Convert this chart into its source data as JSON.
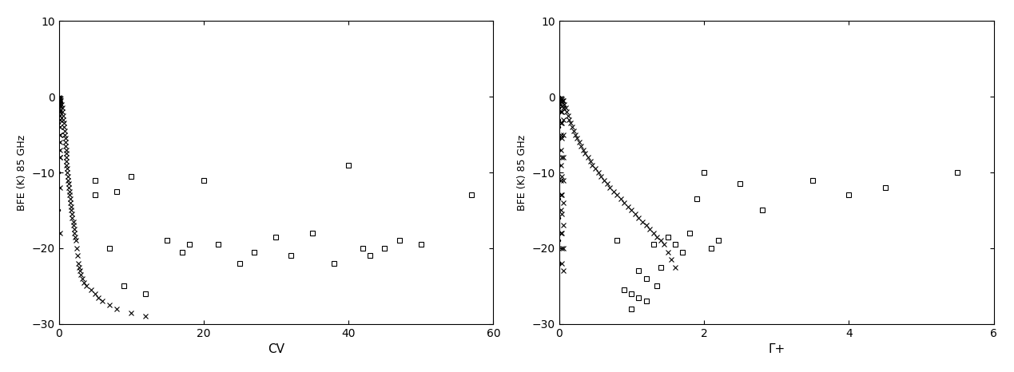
{
  "background_color": "#ffffff",
  "fig_width": 12.69,
  "fig_height": 4.66,
  "dpi": 100,
  "plot1": {
    "ylabel": "BFE (K) 85 GHz",
    "xlabel": "CV",
    "xlim": [
      0,
      60
    ],
    "ylim": [
      -30,
      10
    ],
    "xticks": [
      0,
      20,
      40,
      60
    ],
    "yticks": [
      -30,
      -20,
      -10,
      0,
      10
    ],
    "crosses_x": [
      0.3,
      0.4,
      0.5,
      0.5,
      0.6,
      0.6,
      0.7,
      0.7,
      0.8,
      0.8,
      0.9,
      0.9,
      0.9,
      1.0,
      1.0,
      1.0,
      1.1,
      1.1,
      1.2,
      1.2,
      1.3,
      1.3,
      1.4,
      1.4,
      1.5,
      1.5,
      1.6,
      1.6,
      1.7,
      1.7,
      1.8,
      1.8,
      2.0,
      2.0,
      2.1,
      2.2,
      2.3,
      2.4,
      2.5,
      2.6,
      2.7,
      2.8,
      2.9,
      3.0,
      3.2,
      3.5,
      3.8,
      4.5,
      5.0,
      5.5,
      6.0,
      7.0,
      8.0,
      10.0,
      12.0,
      0.1,
      0.1,
      0.1,
      0.1,
      0.1,
      0.2,
      0.2,
      0.2,
      0.2,
      0.2,
      0.2,
      0.2,
      0.2,
      0.2,
      0.2,
      0.2,
      0.2,
      0.15,
      0.15,
      0.15,
      0.15,
      0.15,
      0.15,
      0.15,
      0.15,
      0.15
    ],
    "crosses_y": [
      -0.5,
      -1.0,
      -1.5,
      -2.0,
      -2.5,
      -3.0,
      -3.5,
      -4.0,
      -4.5,
      -5.0,
      -5.5,
      -6.0,
      -6.5,
      -7.0,
      -7.5,
      -8.0,
      -8.5,
      -9.0,
      -9.5,
      -10.0,
      -10.5,
      -11.0,
      -11.5,
      -12.0,
      -12.5,
      -13.0,
      -13.5,
      -14.0,
      -14.5,
      -15.0,
      -15.5,
      -16.0,
      -16.5,
      -17.0,
      -17.5,
      -18.0,
      -18.5,
      -19.0,
      -20.0,
      -21.0,
      -22.0,
      -22.5,
      -23.0,
      -23.5,
      -24.0,
      -24.5,
      -25.0,
      -25.5,
      -26.0,
      -26.5,
      -27.0,
      -27.5,
      -28.0,
      -28.5,
      -29.0,
      -0.1,
      -0.2,
      -0.3,
      -0.4,
      -0.5,
      -0.3,
      -0.5,
      -0.8,
      -1.2,
      -1.8,
      -2.5,
      -3.0,
      -4.0,
      -5.0,
      -6.0,
      -7.0,
      -8.0,
      -0.2,
      -0.5,
      -1.0,
      -2.0,
      -3.0,
      -5.0,
      -8.0,
      -12.0,
      -18.0
    ],
    "squares_x": [
      5.0,
      5.0,
      7.0,
      8.0,
      9.0,
      10.0,
      12.0,
      15.0,
      17.0,
      18.0,
      20.0,
      22.0,
      25.0,
      27.0,
      30.0,
      32.0,
      35.0,
      38.0,
      40.0,
      42.0,
      43.0,
      45.0,
      47.0,
      50.0,
      57.0
    ],
    "squares_y": [
      -11.0,
      -13.0,
      -20.0,
      -12.5,
      -25.0,
      -10.5,
      -26.0,
      -19.0,
      -20.5,
      -19.5,
      -11.0,
      -19.5,
      -22.0,
      -20.5,
      -18.5,
      -21.0,
      -18.0,
      -22.0,
      -9.0,
      -20.0,
      -21.0,
      -20.0,
      -19.0,
      -19.5,
      -13.0
    ],
    "dots_x": [
      0.05,
      0.05,
      0.05,
      0.05,
      0.05,
      0.05,
      0.05,
      0.05,
      0.05,
      0.05,
      0.05,
      0.05,
      0.05,
      0.05,
      0.05,
      0.05,
      0.05,
      0.05,
      0.05,
      0.05
    ],
    "dots_y": [
      0.0,
      -0.2,
      -0.4,
      -0.6,
      -0.8,
      -1.0,
      -1.5,
      -2.0,
      -2.5,
      -3.0,
      -3.5,
      -4.0,
      -5.0,
      -6.0,
      -7.0,
      -8.0,
      -10.0,
      -12.0,
      -15.0,
      -18.0
    ]
  },
  "plot2": {
    "ylabel": "BFE (K) 85 GHz",
    "xlabel": "Γ+",
    "xlim": [
      0,
      6
    ],
    "ylim": [
      -30,
      10
    ],
    "xticks": [
      0,
      2,
      4,
      6
    ],
    "yticks": [
      -30,
      -20,
      -10,
      0,
      10
    ],
    "crosses_x": [
      0.05,
      0.07,
      0.09,
      0.1,
      0.12,
      0.14,
      0.16,
      0.18,
      0.2,
      0.22,
      0.25,
      0.28,
      0.3,
      0.33,
      0.36,
      0.4,
      0.43,
      0.46,
      0.5,
      0.54,
      0.58,
      0.62,
      0.66,
      0.7,
      0.75,
      0.8,
      0.85,
      0.9,
      0.95,
      1.0,
      1.05,
      1.1,
      1.15,
      1.2,
      1.25,
      1.3,
      1.35,
      1.4,
      1.45,
      1.5,
      1.55,
      1.6,
      0.02,
      0.02,
      0.02,
      0.02,
      0.02,
      0.02,
      0.02,
      0.02,
      0.02,
      0.02,
      0.02,
      0.02,
      0.04,
      0.04,
      0.04,
      0.04,
      0.04,
      0.04,
      0.04,
      0.04,
      0.04,
      0.04,
      0.04,
      0.04,
      0.04,
      0.06,
      0.06,
      0.06,
      0.06,
      0.06,
      0.06,
      0.06,
      0.06,
      0.06,
      0.06
    ],
    "crosses_y": [
      -0.5,
      -1.0,
      -1.5,
      -2.0,
      -2.5,
      -3.0,
      -3.5,
      -4.0,
      -4.5,
      -5.0,
      -5.5,
      -6.0,
      -6.5,
      -7.0,
      -7.5,
      -8.0,
      -8.5,
      -9.0,
      -9.5,
      -10.0,
      -10.5,
      -11.0,
      -11.5,
      -12.0,
      -12.5,
      -13.0,
      -13.5,
      -14.0,
      -14.5,
      -15.0,
      -15.5,
      -16.0,
      -16.5,
      -17.0,
      -17.5,
      -18.0,
      -18.5,
      -19.0,
      -19.5,
      -20.5,
      -21.5,
      -22.5,
      -0.2,
      -0.5,
      -1.0,
      -2.0,
      -3.5,
      -5.0,
      -7.0,
      -9.0,
      -11.0,
      -13.0,
      -15.0,
      -18.0,
      -0.3,
      -0.6,
      -1.2,
      -2.0,
      -3.5,
      -5.5,
      -8.0,
      -10.5,
      -13.0,
      -15.5,
      -18.0,
      -20.0,
      -22.0,
      -0.5,
      -1.5,
      -3.0,
      -5.0,
      -8.0,
      -11.0,
      -14.0,
      -17.0,
      -20.0,
      -23.0
    ],
    "squares_x": [
      0.8,
      0.9,
      1.0,
      1.0,
      1.1,
      1.1,
      1.2,
      1.2,
      1.3,
      1.35,
      1.4,
      1.5,
      1.6,
      1.7,
      1.8,
      1.9,
      2.0,
      2.1,
      2.2,
      2.5,
      2.8,
      3.5,
      4.0,
      4.5,
      5.5
    ],
    "squares_y": [
      -19.0,
      -25.5,
      -26.0,
      -28.0,
      -23.0,
      -26.5,
      -24.0,
      -27.0,
      -19.5,
      -25.0,
      -22.5,
      -18.5,
      -19.5,
      -20.5,
      -18.0,
      -13.5,
      -10.0,
      -20.0,
      -19.0,
      -11.5,
      -15.0,
      -11.0,
      -13.0,
      -12.0,
      -10.0
    ],
    "dots_x": [
      0.005,
      0.005,
      0.005,
      0.005,
      0.005,
      0.005,
      0.005,
      0.005,
      0.005,
      0.005,
      0.005,
      0.005,
      0.005,
      0.005,
      0.005,
      0.005,
      0.005,
      0.005,
      0.005,
      0.005
    ],
    "dots_y": [
      0.0,
      -0.3,
      -0.6,
      -1.0,
      -1.5,
      -2.0,
      -3.0,
      -4.0,
      -5.5,
      -7.0,
      -9.0,
      -11.0,
      -13.5,
      -16.0,
      -19.0,
      -22.0,
      -0.1,
      -0.2,
      -0.5,
      -0.8
    ]
  }
}
